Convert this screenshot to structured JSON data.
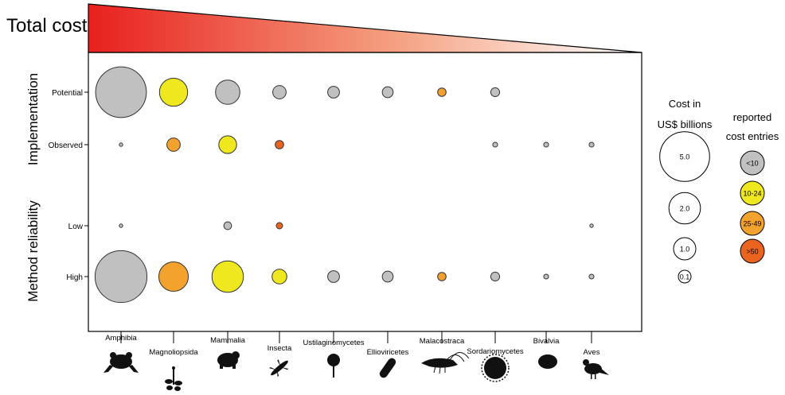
{
  "chart_data": {
    "type": "scatter",
    "title": "Total cost",
    "y_groups": [
      {
        "label": "Implementation",
        "rows": [
          "Potential",
          "Observed"
        ]
      },
      {
        "label": "Method reliability",
        "rows": [
          "Low",
          "High"
        ]
      }
    ],
    "rows": [
      "Potential",
      "Observed",
      "Low",
      "High"
    ],
    "categories": [
      "Amphibia",
      "Magnoliopsida",
      "Mammalia",
      "Insecta",
      "Ustilaginomycetes",
      "Ellioviricetes",
      "Malacostraca",
      "Sordariomycetes",
      "Bivalvia",
      "Aves"
    ],
    "color_classes": {
      "lt10": "#c0c0c0",
      "10to24": "#f0e81e",
      "25to49": "#f4a22e",
      "gt50": "#ea6420"
    },
    "points": [
      {
        "category": "Amphibia",
        "row": "Potential",
        "value": 6.5,
        "class": "lt10"
      },
      {
        "category": "Amphibia",
        "row": "Observed",
        "value": 0.03,
        "class": "lt10"
      },
      {
        "category": "Amphibia",
        "row": "Low",
        "value": 0.03,
        "class": "lt10"
      },
      {
        "category": "Amphibia",
        "row": "High",
        "value": 6.8,
        "class": "lt10"
      },
      {
        "category": "Magnoliopsida",
        "row": "Potential",
        "value": 2.0,
        "class": "10to24"
      },
      {
        "category": "Magnoliopsida",
        "row": "Observed",
        "value": 0.45,
        "class": "25to49"
      },
      {
        "category": "Magnoliopsida",
        "row": "High",
        "value": 2.2,
        "class": "25to49"
      },
      {
        "category": "Mammalia",
        "row": "Potential",
        "value": 1.5,
        "class": "lt10"
      },
      {
        "category": "Mammalia",
        "row": "Observed",
        "value": 0.8,
        "class": "10to24"
      },
      {
        "category": "Mammalia",
        "row": "Low",
        "value": 0.15,
        "class": "lt10"
      },
      {
        "category": "Mammalia",
        "row": "High",
        "value": 2.5,
        "class": "10to24"
      },
      {
        "category": "Insecta",
        "row": "Potential",
        "value": 0.45,
        "class": "lt10"
      },
      {
        "category": "Insecta",
        "row": "Observed",
        "value": 0.18,
        "class": "gt50"
      },
      {
        "category": "Insecta",
        "row": "Low",
        "value": 0.1,
        "class": "gt50"
      },
      {
        "category": "Insecta",
        "row": "High",
        "value": 0.55,
        "class": "10to24"
      },
      {
        "category": "Ustilaginomycetes",
        "row": "Potential",
        "value": 0.35,
        "class": "lt10"
      },
      {
        "category": "Ustilaginomycetes",
        "row": "High",
        "value": 0.35,
        "class": "lt10"
      },
      {
        "category": "Ellioviricetes",
        "row": "Potential",
        "value": 0.3,
        "class": "lt10"
      },
      {
        "category": "Ellioviricetes",
        "row": "High",
        "value": 0.3,
        "class": "lt10"
      },
      {
        "category": "Malacostraca",
        "row": "Potential",
        "value": 0.18,
        "class": "25to49"
      },
      {
        "category": "Malacostraca",
        "row": "High",
        "value": 0.18,
        "class": "25to49"
      },
      {
        "category": "Sordariomycetes",
        "row": "Potential",
        "value": 0.2,
        "class": "lt10"
      },
      {
        "category": "Sordariomycetes",
        "row": "Observed",
        "value": 0.06,
        "class": "lt10"
      },
      {
        "category": "Sordariomycetes",
        "row": "High",
        "value": 0.2,
        "class": "lt10"
      },
      {
        "category": "Bivalvia",
        "row": "Observed",
        "value": 0.06,
        "class": "lt10"
      },
      {
        "category": "Bivalvia",
        "row": "High",
        "value": 0.06,
        "class": "lt10"
      },
      {
        "category": "Aves",
        "row": "Observed",
        "value": 0.06,
        "class": "lt10"
      },
      {
        "category": "Aves",
        "row": "Low",
        "value": 0.03,
        "class": "lt10"
      },
      {
        "category": "Aves",
        "row": "High",
        "value": 0.06,
        "class": "lt10"
      }
    ],
    "size_legend": {
      "title_line1": "Cost in",
      "title_line2": "US$ billions",
      "entries": [
        {
          "label": "5.0",
          "value": 5.0
        },
        {
          "label": "2.0",
          "value": 2.0
        },
        {
          "label": "1.0",
          "value": 1.0
        },
        {
          "label": "0.1",
          "value": 0.1
        }
      ]
    },
    "color_legend": {
      "title_line1": "reported",
      "title_line2": "cost entries",
      "entries": [
        {
          "label": "<10",
          "class": "lt10"
        },
        {
          "label": "10-24",
          "class": "10to24"
        },
        {
          "label": "25-49",
          "class": "25to49"
        },
        {
          "label": ">50",
          "class": "gt50"
        }
      ]
    },
    "gradient_colors": [
      "#e8201e",
      "#f4a080",
      "#ffffff"
    ],
    "icons": [
      "frog-icon",
      "plant-icon",
      "rodent-icon",
      "insect-icon",
      "fungus-icon",
      "virus-icon",
      "shrimp-icon",
      "spore-icon",
      "clam-icon",
      "bird-icon"
    ]
  }
}
